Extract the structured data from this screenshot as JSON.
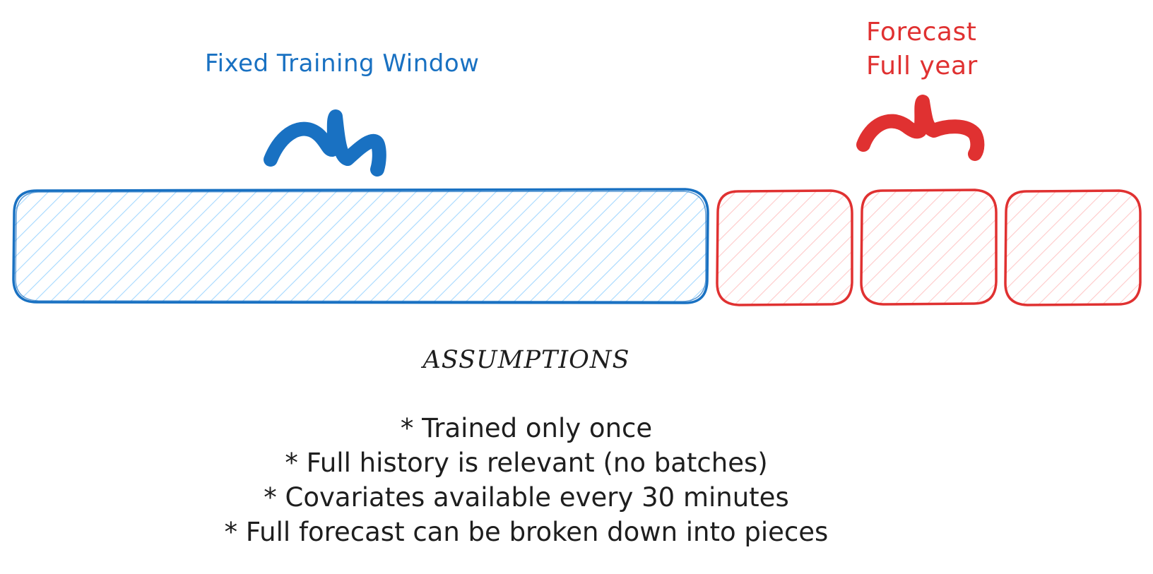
{
  "training": {
    "label": "Fixed Training Window",
    "color": "#1971c2",
    "hatch_color": "#a5d8ff"
  },
  "forecast": {
    "label_line1": "Forecast",
    "label_line2": "Full year",
    "color": "#e03131",
    "hatch_color": "#ffc9c9",
    "segments": 3
  },
  "assumptions": {
    "title": "ASSUMPTIONS",
    "items": [
      "* Trained only once",
      "* Full history is relevant (no batches)",
      "* Covariates available every 30 minutes",
      "* Full forecast can be broken down into pieces"
    ]
  }
}
